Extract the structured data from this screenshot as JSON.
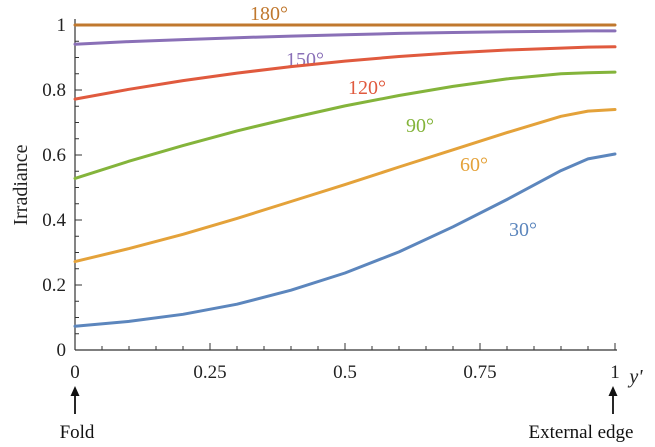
{
  "chart_data": {
    "type": "line",
    "title": "",
    "xlabel": "y'",
    "ylabel": "Irradiance",
    "xlim": [
      0,
      1
    ],
    "ylim": [
      0,
      1
    ],
    "x_ticks": [
      "0",
      "0.25",
      "0.5",
      "0.75",
      "1"
    ],
    "y_ticks": [
      "0",
      "0.2",
      "0.4",
      "0.6",
      "0.8",
      "1"
    ],
    "grid": false,
    "below_axis_labels": {
      "left": "Fold",
      "right": "External edge"
    },
    "series": [
      {
        "name": "180°",
        "color": "#c0782e",
        "x": [
          0,
          0.25,
          0.5,
          0.75,
          0.95,
          1
        ],
        "y": [
          1.0,
          1.0,
          1.0,
          1.0,
          1.0,
          1.0
        ]
      },
      {
        "name": "150°",
        "color": "#8a70b7",
        "x": [
          0,
          0.1,
          0.2,
          0.3,
          0.4,
          0.5,
          0.6,
          0.7,
          0.8,
          0.9,
          0.95,
          1
        ],
        "y": [
          0.941,
          0.949,
          0.955,
          0.961,
          0.966,
          0.97,
          0.974,
          0.977,
          0.979,
          0.981,
          0.982,
          0.982
        ]
      },
      {
        "name": "120°",
        "color": "#e05a3e",
        "x": [
          0,
          0.1,
          0.2,
          0.3,
          0.4,
          0.5,
          0.6,
          0.7,
          0.8,
          0.9,
          0.95,
          1
        ],
        "y": [
          0.772,
          0.802,
          0.829,
          0.852,
          0.872,
          0.889,
          0.903,
          0.914,
          0.923,
          0.929,
          0.932,
          0.933
        ]
      },
      {
        "name": "90°",
        "color": "#84b43b",
        "x": [
          0,
          0.1,
          0.2,
          0.3,
          0.4,
          0.5,
          0.6,
          0.7,
          0.8,
          0.9,
          0.95,
          1
        ],
        "y": [
          0.528,
          0.581,
          0.629,
          0.674,
          0.714,
          0.751,
          0.783,
          0.811,
          0.834,
          0.85,
          0.853,
          0.855
        ]
      },
      {
        "name": "60°",
        "color": "#e4a23a",
        "x": [
          0,
          0.1,
          0.2,
          0.3,
          0.4,
          0.5,
          0.6,
          0.7,
          0.8,
          0.9,
          0.95,
          1
        ],
        "y": [
          0.272,
          0.312,
          0.356,
          0.405,
          0.457,
          0.509,
          0.563,
          0.616,
          0.669,
          0.719,
          0.735,
          0.74
        ]
      },
      {
        "name": "30°",
        "color": "#5c86bd",
        "x": [
          0,
          0.1,
          0.2,
          0.3,
          0.4,
          0.5,
          0.6,
          0.7,
          0.8,
          0.9,
          0.95,
          1
        ],
        "y": [
          0.073,
          0.088,
          0.11,
          0.141,
          0.184,
          0.237,
          0.302,
          0.379,
          0.463,
          0.552,
          0.588,
          0.603
        ]
      }
    ]
  }
}
